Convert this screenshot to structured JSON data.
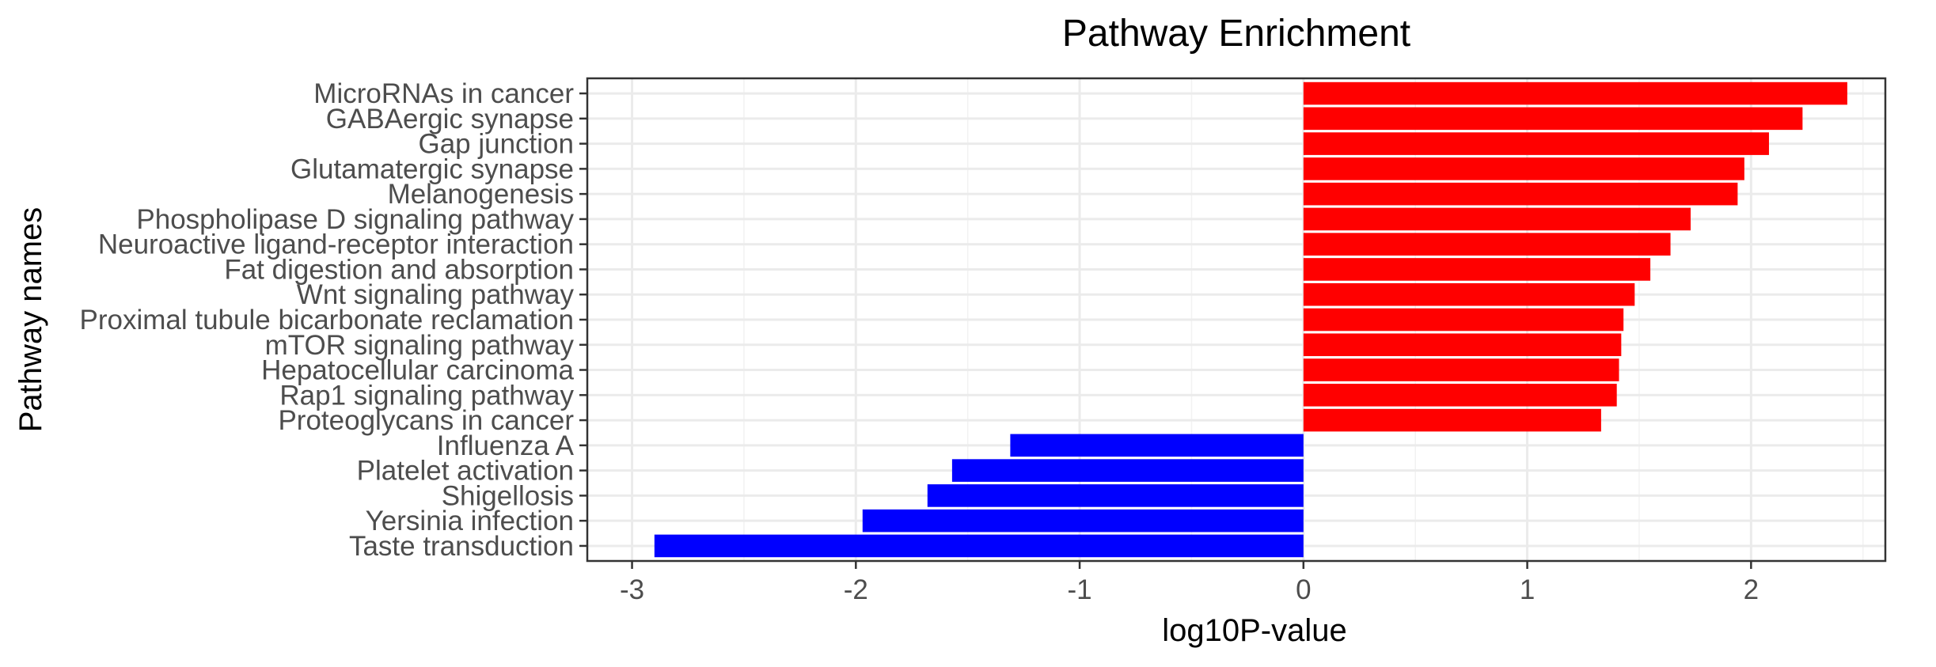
{
  "chart_data": {
    "type": "bar",
    "orientation": "horizontal",
    "title": "Pathway Enrichment",
    "xlabel": "log10P-value",
    "ylabel": "Pathway names",
    "xlim": [
      -3.2,
      2.6
    ],
    "xticks": [
      -3,
      -2,
      -1,
      0,
      1,
      2
    ],
    "grid": true,
    "legend": "none",
    "colors": {
      "positive": "#ff0000",
      "negative": "#0000ff"
    },
    "categories": [
      "MicroRNAs in cancer",
      "GABAergic synapse",
      "Gap junction",
      "Glutamatergic synapse",
      "Melanogenesis",
      "Phospholipase D signaling pathway",
      "Neuroactive ligand-receptor interaction",
      "Fat digestion and absorption",
      "Wnt signaling pathway",
      "Proximal tubule bicarbonate reclamation",
      "mTOR signaling pathway",
      "Hepatocellular carcinoma",
      "Rap1 signaling pathway",
      "Proteoglycans in cancer",
      "Influenza A",
      "Platelet activation",
      "Shigellosis",
      "Yersinia infection",
      "Taste transduction"
    ],
    "values": [
      2.43,
      2.23,
      2.08,
      1.97,
      1.94,
      1.73,
      1.64,
      1.55,
      1.48,
      1.43,
      1.42,
      1.41,
      1.4,
      1.33,
      -1.31,
      -1.57,
      -1.68,
      -1.97,
      -2.9
    ]
  }
}
